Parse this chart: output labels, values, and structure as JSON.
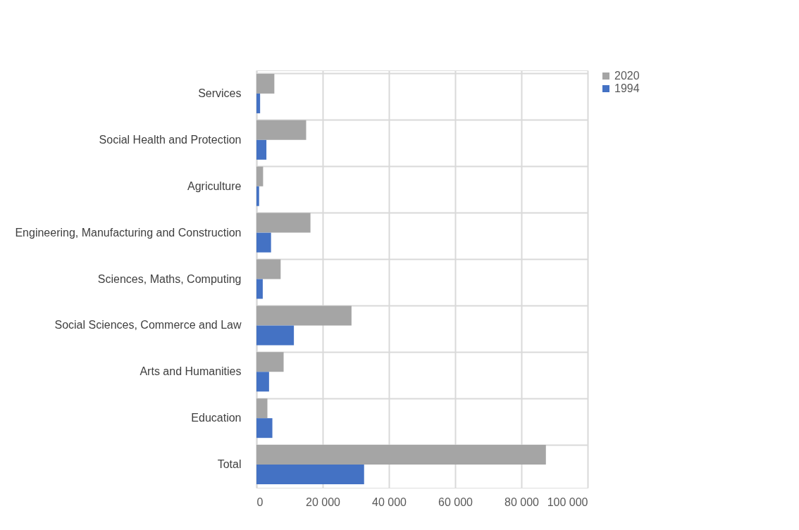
{
  "chart_data": {
    "type": "bar",
    "orientation": "horizontal",
    "categories": [
      "Services",
      "Social Health and Protection",
      "Agriculture",
      "Engineering, Manufacturing and Construction",
      "Sciences, Maths, Computing",
      "Social Sciences, Commerce and Law",
      "Arts and Humanities",
      "Education",
      "Total"
    ],
    "series": [
      {
        "name": "2020",
        "color": "#a5a5a5",
        "values": [
          5400,
          15000,
          2000,
          16300,
          7300,
          28700,
          8200,
          3300,
          87400
        ]
      },
      {
        "name": "1994",
        "color": "#4472c4",
        "values": [
          1100,
          3000,
          800,
          4400,
          1900,
          11300,
          3800,
          4800,
          32500
        ]
      }
    ],
    "xlim": [
      0,
      100000
    ],
    "xticks": [
      0,
      {
        "value": 20000,
        "label": "20 000"
      },
      {
        "value": 40000,
        "label": "40 000"
      },
      {
        "value": 60000,
        "label": "60 000"
      },
      {
        "value": 80000,
        "label": "80 000"
      },
      {
        "value": 100000,
        "label": "100 000"
      }
    ],
    "grid": true,
    "legend": "right"
  }
}
